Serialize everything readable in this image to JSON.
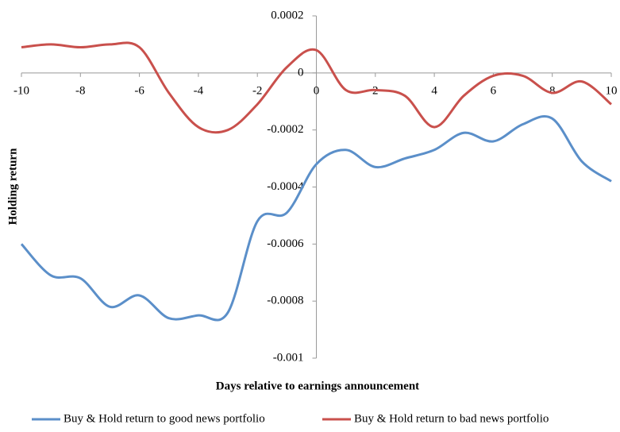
{
  "chart_data": {
    "type": "line",
    "x_label": "Days relative to earnings announcement",
    "y_label": "Holding return",
    "x": [
      -10,
      -9,
      -8,
      -7,
      -6,
      -5,
      -4,
      -3,
      -2,
      -1,
      0,
      1,
      2,
      3,
      4,
      5,
      6,
      7,
      8,
      9,
      10
    ],
    "series": [
      {
        "name": "Buy & Hold return to good news portfolio",
        "color": "#5b8fc9",
        "values": [
          -0.0006,
          -0.00071,
          -0.00072,
          -0.00082,
          -0.00078,
          -0.00086,
          -0.00085,
          -0.00084,
          -0.00052,
          -0.00049,
          -0.00032,
          -0.00027,
          -0.00033,
          -0.0003,
          -0.00027,
          -0.00021,
          -0.00024,
          -0.00018,
          -0.00016,
          -0.00031,
          -0.00038
        ]
      },
      {
        "name": "Buy & Hold return to bad news portfolio",
        "color": "#c9504c",
        "values": [
          9e-05,
          0.0001,
          9e-05,
          0.0001,
          9e-05,
          -7e-05,
          -0.00019,
          -0.0002,
          -0.00011,
          2e-05,
          8e-05,
          -6e-05,
          -6e-05,
          -8e-05,
          -0.00019,
          -8e-05,
          -1e-05,
          -1e-05,
          -7e-05,
          -3e-05,
          -0.00011
        ]
      }
    ],
    "xlim": [
      -10,
      10
    ],
    "xticks": [
      -10,
      -8,
      -6,
      -4,
      -2,
      0,
      2,
      4,
      6,
      8,
      10
    ],
    "ylim": [
      -0.001,
      0.0002
    ],
    "yticks": [
      -0.001,
      -0.0008,
      -0.0006,
      -0.0004,
      -0.0002,
      0,
      0.0002
    ],
    "legend": "bottom"
  }
}
